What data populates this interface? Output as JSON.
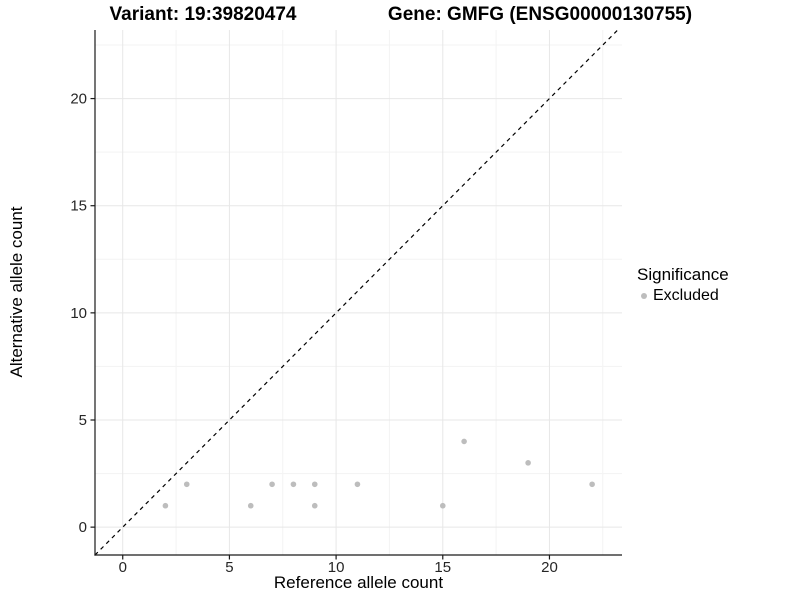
{
  "titles": {
    "variant": "Variant: 19:39820474",
    "gene": "Gene: GMFG (ENSG00000130755)"
  },
  "legend": {
    "title": "Significance",
    "items": [
      {
        "label": "Excluded",
        "color": "#BDBDBD"
      }
    ]
  },
  "chart_data": {
    "type": "scatter",
    "xlabel": "Reference allele count",
    "ylabel": "Alternative allele count",
    "xlim": [
      -1.3,
      23.4
    ],
    "ylim": [
      -1.3,
      23.2
    ],
    "x_ticks": [
      0,
      5,
      10,
      15,
      20
    ],
    "y_ticks": [
      0,
      5,
      10,
      15,
      20
    ],
    "x_minor_ticks": [
      2.5,
      7.5,
      12.5,
      17.5,
      22.5
    ],
    "y_minor_ticks": [
      2.5,
      7.5,
      12.5,
      17.5,
      22.5
    ],
    "grid": "major+minor",
    "legend_position": "right",
    "series": [
      {
        "name": "Excluded",
        "color": "#BDBDBD",
        "points": [
          {
            "x": 2,
            "y": 1
          },
          {
            "x": 3,
            "y": 2
          },
          {
            "x": 6,
            "y": 1
          },
          {
            "x": 7,
            "y": 2
          },
          {
            "x": 8,
            "y": 2
          },
          {
            "x": 9,
            "y": 1
          },
          {
            "x": 9,
            "y": 2
          },
          {
            "x": 11,
            "y": 2
          },
          {
            "x": 15,
            "y": 1
          },
          {
            "x": 16,
            "y": 4
          },
          {
            "x": 19,
            "y": 3
          },
          {
            "x": 22,
            "y": 2
          }
        ]
      }
    ],
    "reference_line": {
      "kind": "identity-diagonal",
      "style": "dashed",
      "color": "#000000"
    },
    "colors": {
      "grid_major": "#E7E7E7",
      "grid_minor": "#F3F3F3",
      "axis_line": "#1A1A1A",
      "tick_mark": "#1A1A1A",
      "tick_label": "#262626",
      "point": "#BDBDBD"
    }
  }
}
